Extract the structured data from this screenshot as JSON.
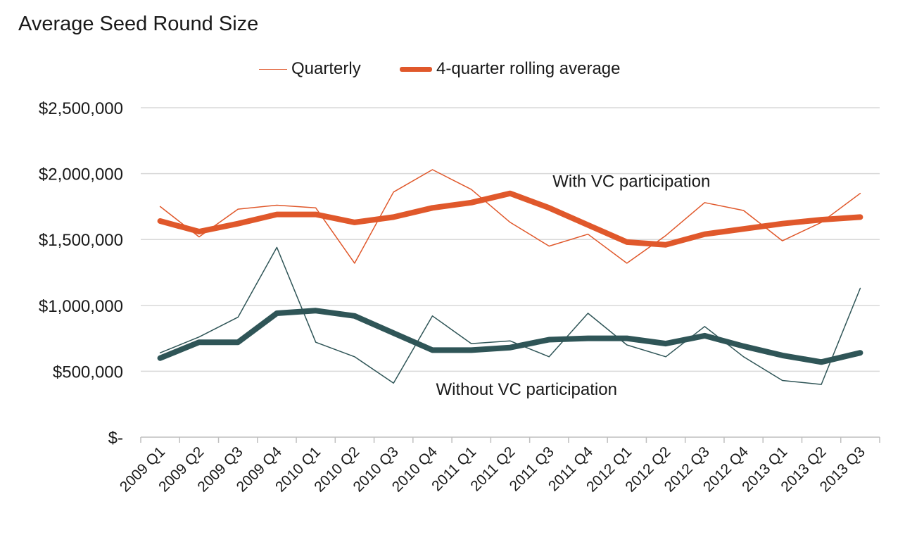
{
  "chart_data": {
    "type": "line",
    "title": "Average Seed Round Size",
    "xlabel": "",
    "ylabel": "",
    "ylim": [
      0,
      2500000
    ],
    "y_ticks": [
      {
        "value": 0,
        "label": "$-"
      },
      {
        "value": 500000,
        "label": "$500,000"
      },
      {
        "value": 1000000,
        "label": "$1,000,000"
      },
      {
        "value": 1500000,
        "label": "$1,500,000"
      },
      {
        "value": 2000000,
        "label": "$2,000,000"
      },
      {
        "value": 2500000,
        "label": "$2,500,000"
      }
    ],
    "grid": "horizontal",
    "legend_position": "top",
    "categories": [
      "2009 Q1",
      "2009 Q2",
      "2009 Q3",
      "2009 Q4",
      "2010 Q1",
      "2010 Q2",
      "2010 Q3",
      "2010 Q4",
      "2011 Q1",
      "2011 Q2",
      "2011 Q3",
      "2011 Q4",
      "2012 Q1",
      "2012 Q2",
      "2012 Q3",
      "2012 Q4",
      "2013 Q1",
      "2013 Q2",
      "2013 Q3"
    ],
    "legend": [
      {
        "label": "Quarterly",
        "style": "thin",
        "color": "#e0582b"
      },
      {
        "label": "4-quarter rolling average",
        "style": "thick",
        "color": "#e0582b"
      }
    ],
    "series": [
      {
        "group": "With VC participation",
        "kind": "Quarterly",
        "color": "#e0582b",
        "width": 1.5,
        "values": [
          1750000,
          1520000,
          1730000,
          1760000,
          1740000,
          1320000,
          1860000,
          2030000,
          1880000,
          1630000,
          1450000,
          1540000,
          1320000,
          1530000,
          1780000,
          1720000,
          1490000,
          1630000,
          1850000
        ]
      },
      {
        "group": "With VC participation",
        "kind": "4-quarter rolling average",
        "color": "#e0582b",
        "width": 8,
        "values": [
          1640000,
          1560000,
          1620000,
          1690000,
          1690000,
          1630000,
          1670000,
          1740000,
          1780000,
          1850000,
          1740000,
          1610000,
          1480000,
          1460000,
          1540000,
          1580000,
          1620000,
          1650000,
          1670000
        ]
      },
      {
        "group": "Without VC participation",
        "kind": "Quarterly",
        "color": "#2f5557",
        "width": 1.5,
        "values": [
          640000,
          760000,
          910000,
          1440000,
          720000,
          610000,
          410000,
          920000,
          710000,
          730000,
          610000,
          940000,
          700000,
          610000,
          840000,
          610000,
          430000,
          400000,
          1130000
        ]
      },
      {
        "group": "Without VC participation",
        "kind": "4-quarter rolling average",
        "color": "#2f5557",
        "width": 8,
        "values": [
          600000,
          720000,
          720000,
          940000,
          960000,
          920000,
          790000,
          660000,
          660000,
          680000,
          740000,
          750000,
          750000,
          710000,
          770000,
          690000,
          620000,
          570000,
          640000
        ]
      }
    ],
    "annotations": [
      {
        "text": "With VC participation",
        "anchor_value": 1900000,
        "anchor_category": "2011 Q3"
      },
      {
        "text": "Without VC participation",
        "anchor_value": 320000,
        "anchor_category": "2010 Q4"
      }
    ]
  }
}
